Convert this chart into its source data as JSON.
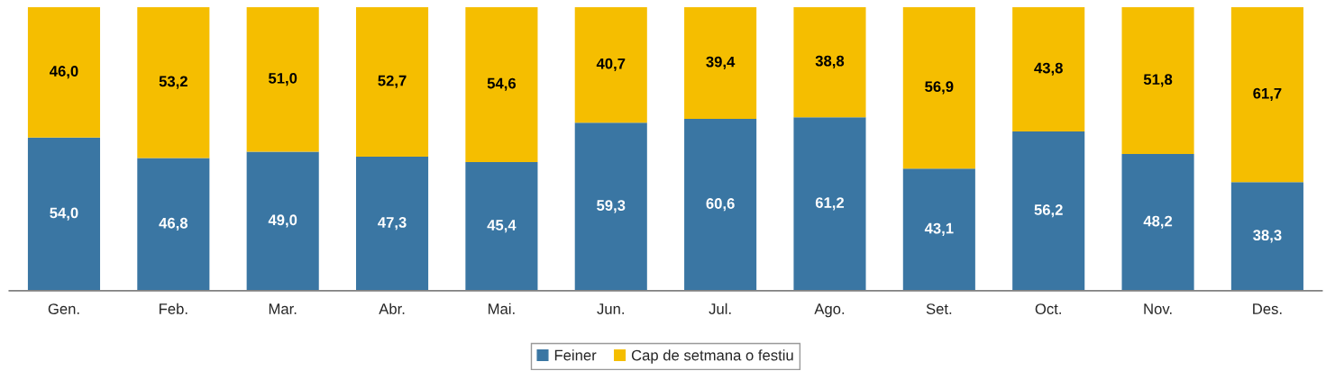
{
  "chart_data": {
    "type": "bar",
    "stacked": true,
    "categories": [
      "Gen.",
      "Feb.",
      "Mar.",
      "Abr.",
      "Mai.",
      "Jun.",
      "Jul.",
      "Ago.",
      "Set.",
      "Oct.",
      "Nov.",
      "Des."
    ],
    "series": [
      {
        "name": "Feiner",
        "color": "#3a76a3",
        "values": [
          54.0,
          46.8,
          49.0,
          47.3,
          45.4,
          59.3,
          60.6,
          61.2,
          43.1,
          56.2,
          48.2,
          38.3
        ],
        "value_labels": [
          "54,0",
          "46,8",
          "49,0",
          "47,3",
          "45,4",
          "59,3",
          "60,6",
          "61,2",
          "43,1",
          "56,2",
          "48,2",
          "38,3"
        ]
      },
      {
        "name": "Cap de setmana o festiu",
        "color": "#f5be00",
        "values": [
          46.0,
          53.2,
          51.0,
          52.7,
          54.6,
          40.7,
          39.4,
          38.8,
          56.9,
          43.8,
          51.8,
          61.7
        ],
        "value_labels": [
          "46,0",
          "53,2",
          "51,0",
          "52,7",
          "54,6",
          "40,7",
          "39,4",
          "38,8",
          "56,9",
          "43,8",
          "51,8",
          "61,7"
        ]
      }
    ],
    "ylim": [
      0,
      100
    ],
    "tick_labels": "x",
    "grid": false,
    "legend": "bottom"
  }
}
